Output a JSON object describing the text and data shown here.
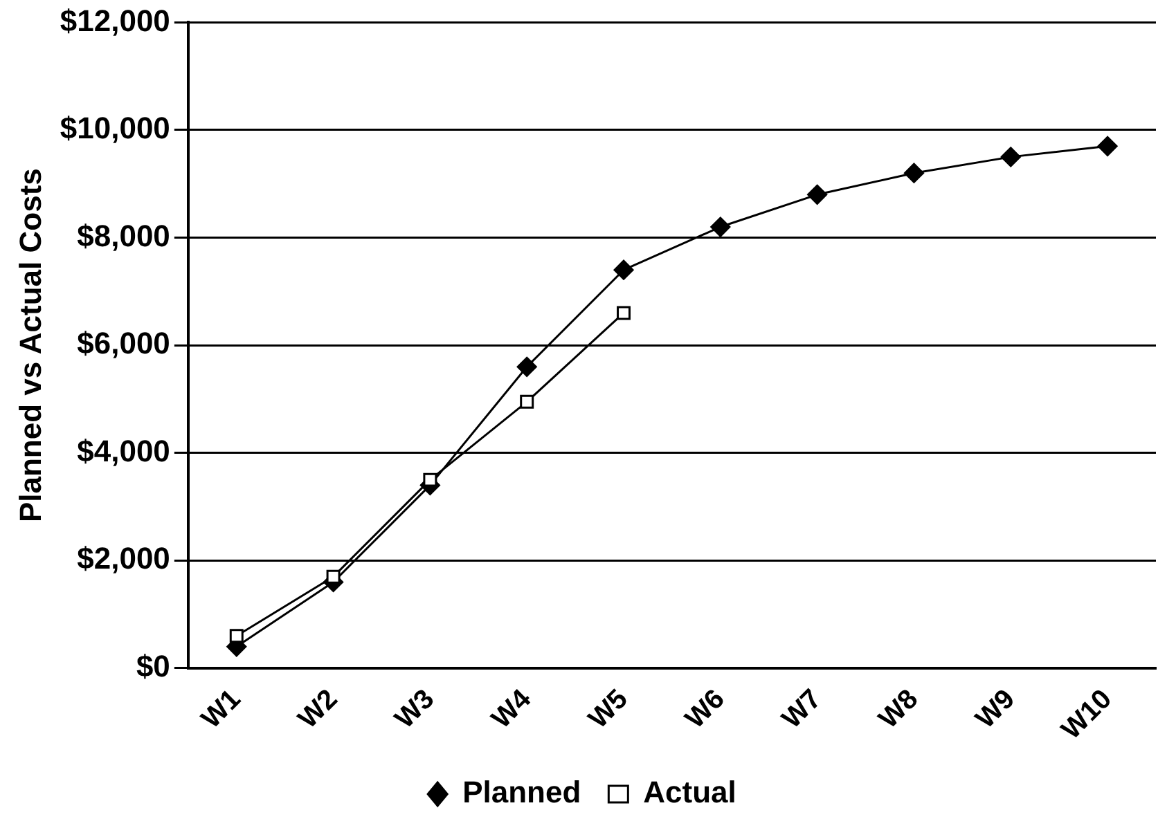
{
  "chart_data": {
    "type": "line",
    "ylabel": "Planned vs Actual Costs",
    "categories": [
      "W1",
      "W2",
      "W3",
      "W4",
      "W5",
      "W6",
      "W7",
      "W8",
      "W9",
      "W10"
    ],
    "series": [
      {
        "name": "Planned",
        "color": "#000000",
        "marker": "diamond",
        "values": [
          400,
          1600,
          3400,
          5600,
          7400,
          8200,
          8800,
          9200,
          9500,
          9700
        ]
      },
      {
        "name": "Actual",
        "color": "#000000",
        "marker": "square",
        "values": [
          600,
          1700,
          3500,
          4950,
          6600,
          null,
          null,
          null,
          null,
          null
        ]
      }
    ],
    "ylim": [
      0,
      12000
    ],
    "yticks": [
      {
        "value": 0,
        "label": "$0"
      },
      {
        "value": 2000,
        "label": "$2,000"
      },
      {
        "value": 4000,
        "label": "$4,000"
      },
      {
        "value": 6000,
        "label": "$6,000"
      },
      {
        "value": 8000,
        "label": "$8,000"
      },
      {
        "value": 10000,
        "label": "$10,000"
      },
      {
        "value": 12000,
        "label": "$12,000"
      }
    ],
    "grid": "y",
    "legend": "bottom"
  }
}
